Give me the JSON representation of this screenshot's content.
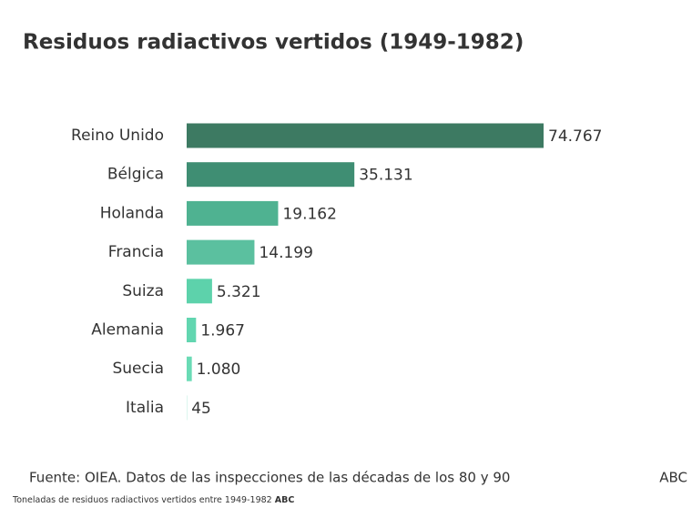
{
  "chart_data": {
    "type": "hbar",
    "title": "Residuos radiactivos vertidos (1949-1982)",
    "categories": [
      "Reino Unido",
      "Bélgica",
      "Holanda",
      "Francia",
      "Suiza",
      "Alemania",
      "Suecia",
      "Italia"
    ],
    "values": [
      74767,
      35131,
      19162,
      14199,
      5321,
      1967,
      1080,
      45
    ],
    "value_labels": [
      "74.767",
      "35.131",
      "19.162",
      "14.199",
      "5.321",
      "1.967",
      "1.080",
      "45"
    ],
    "colors": [
      "#3d7a62",
      "#3f8e73",
      "#4fb291",
      "#5bc09f",
      "#5dd2ab",
      "#62d6b0",
      "#6adbb5",
      "#6adbb5"
    ],
    "source": "Fuente: OIEA. Datos de las inspecciones de las décadas de los 80 y 90",
    "brand": "ABC",
    "caption": "Toneladas de residuos radiactivos vertidos entre 1949-1982",
    "caption_brand": "ABC"
  }
}
